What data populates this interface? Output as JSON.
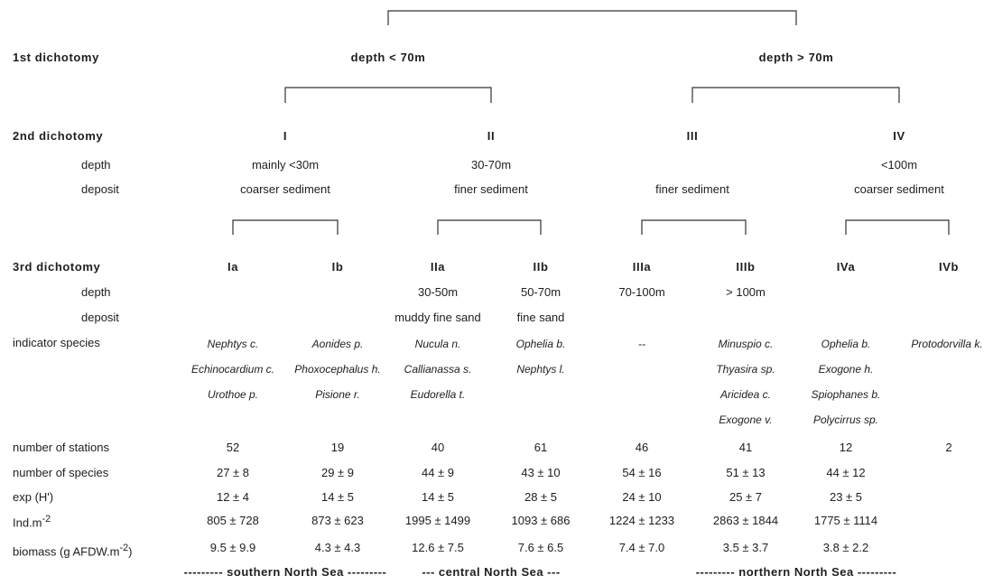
{
  "row_labels": {
    "first": "1st  dichotomy",
    "second": "2nd  dichotomy",
    "second_depth": "depth",
    "second_deposit": "deposit",
    "third": "3rd  dichotomy",
    "third_depth": "depth",
    "third_deposit": "deposit",
    "indicator": "indicator species",
    "stations": "number of stations",
    "species": "number of species",
    "exp": "exp (H')",
    "ind": "Ind.m",
    "ind_sup": "-2",
    "biomass": "biomass (g AFDW.m",
    "biomass_sup": "-2",
    "biomass_end": ")"
  },
  "first": [
    "depth  <  70m",
    "depth  >  70m"
  ],
  "second": {
    "groups": [
      "I",
      "II",
      "III",
      "IV"
    ],
    "depth": [
      "mainly <30m",
      "30-70m",
      "",
      "<100m"
    ],
    "deposit": [
      "coarser sediment",
      "finer sediment",
      "finer sediment",
      "coarser sediment"
    ]
  },
  "third": {
    "groups": [
      "Ia",
      "Ib",
      "IIa",
      "IIb",
      "IIIa",
      "IIIb",
      "IVa",
      "IVb"
    ],
    "depth": [
      "",
      "",
      "30-50m",
      "50-70m",
      "70-100m",
      "> 100m",
      "",
      ""
    ],
    "deposit": [
      "",
      "",
      "muddy fine sand",
      "fine sand",
      "",
      "",
      "",
      ""
    ]
  },
  "indicator_species": [
    [
      "Nephtys c.",
      "Echinocardium c.",
      "Urothoe p."
    ],
    [
      "Aonides p.",
      "Phoxocephalus h.",
      "Pisione r."
    ],
    [
      "Nucula n.",
      "Callianassa s.",
      "Eudorella t."
    ],
    [
      "Ophelia b.",
      "Nephtys l."
    ],
    [
      "--"
    ],
    [
      "Minuspio c.",
      "Thyasira sp.",
      "Aricidea c.",
      "Exogone v."
    ],
    [
      "Ophelia b.",
      "Exogone h.",
      "Spiophanes b.",
      "Polycirrus sp."
    ],
    [
      "Protodorvilla k."
    ]
  ],
  "stats": {
    "stations": [
      "52",
      "19",
      "40",
      "61",
      "46",
      "41",
      "12",
      "2"
    ],
    "species": [
      "27 ± 8",
      "29 ± 9",
      "44 ± 9",
      "43 ± 10",
      "54 ± 16",
      "51 ± 13",
      "44 ± 12",
      ""
    ],
    "exp": [
      "12 ± 4",
      "14 ± 5",
      "14 ± 5",
      "28 ± 5",
      "24 ± 10",
      "25 ± 7",
      "23 ± 5",
      ""
    ],
    "ind": [
      "805 ± 728",
      "873 ± 623",
      "1995 ± 1499",
      "1093 ± 686",
      "1224 ± 1233",
      "2863 ± 1844",
      "1775 ± 1114",
      ""
    ],
    "biomass": [
      "9.5 ± 9.9",
      "4.3 ± 4.3",
      "12.6 ± 7.5",
      "7.6 ± 6.5",
      "7.4 ± 7.0",
      "3.5 ± 3.7",
      "3.8 ± 2.2",
      ""
    ]
  },
  "regions": [
    "---------  southern  North  Sea  ---------",
    "---  central  North  Sea  ---",
    "---------  northern  North  Sea  ---------"
  ]
}
